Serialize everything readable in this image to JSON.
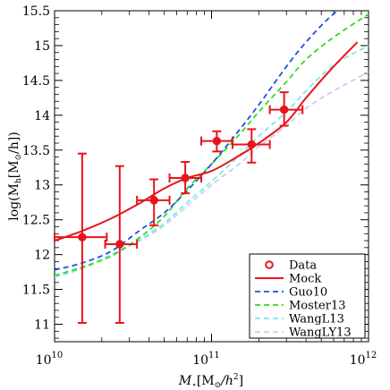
{
  "chart_data": {
    "type": "line",
    "xscale": "log",
    "xlim": [
      10000000000.0,
      1000000000000.0
    ],
    "ylim": [
      10.75,
      15.5
    ],
    "xlabel_main": "M",
    "xlabel_sub": "⋆",
    "xlabel_unit": "[M",
    "xlabel_unit_sub": "⊙",
    "xlabel_unit_tail": "/h",
    "xlabel_unit_sup": "2",
    "xlabel_close": "]",
    "ylabel_pre": "log(M",
    "ylabel_sub": "h",
    "ylabel_unit": "[M",
    "ylabel_unit_sub": "⊙",
    "ylabel_tail": "/h])",
    "x_ticks": [
      {
        "value": 10000000000.0,
        "base": "10",
        "exp": "10"
      },
      {
        "value": 100000000000.0,
        "base": "10",
        "exp": "11"
      },
      {
        "value": 1000000000000.0,
        "base": "10",
        "exp": "12"
      }
    ],
    "y_ticks": [
      {
        "value": 11,
        "label": "11"
      },
      {
        "value": 11.5,
        "label": "11.5"
      },
      {
        "value": 12,
        "label": "12"
      },
      {
        "value": 12.5,
        "label": "12.5"
      },
      {
        "value": 13,
        "label": "13"
      },
      {
        "value": 13.5,
        "label": "13.5"
      },
      {
        "value": 14,
        "label": "14"
      },
      {
        "value": 14.5,
        "label": "14.5"
      },
      {
        "value": 15,
        "label": "15"
      },
      {
        "value": 15.5,
        "label": "15.5"
      }
    ],
    "data_points": {
      "name": "Data",
      "color": "#e8141c",
      "points": [
        {
          "x": 15000000000.0,
          "y": 12.25,
          "xlo": 10000000000.0,
          "xhi": 21500000000.0,
          "ylo": 11.02,
          "yhi": 13.45
        },
        {
          "x": 26000000000.0,
          "y": 12.15,
          "xlo": 21000000000.0,
          "xhi": 33500000000.0,
          "ylo": 11.02,
          "yhi": 13.27
        },
        {
          "x": 43000000000.0,
          "y": 12.78,
          "xlo": 33500000000.0,
          "xhi": 54000000000.0,
          "ylo": 12.42,
          "yhi": 13.08
        },
        {
          "x": 68000000000.0,
          "y": 13.1,
          "xlo": 54000000000.0,
          "xhi": 86000000000.0,
          "ylo": 12.88,
          "yhi": 13.33
        },
        {
          "x": 108000000000.0,
          "y": 13.63,
          "xlo": 86000000000.0,
          "xhi": 136000000000.0,
          "ylo": 13.48,
          "yhi": 13.77
        },
        {
          "x": 180000000000.0,
          "y": 13.58,
          "xlo": 136000000000.0,
          "xhi": 235000000000.0,
          "ylo": 13.32,
          "yhi": 13.8
        },
        {
          "x": 290000000000.0,
          "y": 14.08,
          "xlo": 235000000000.0,
          "xhi": 380000000000.0,
          "ylo": 13.85,
          "yhi": 14.33
        }
      ]
    },
    "series": [
      {
        "name": "Mock",
        "color": "#e8141c",
        "dash": "",
        "width": 2,
        "x": [
          10000000000.0,
          15000000000.0,
          23000000000.0,
          35000000000.0,
          50000000000.0,
          70000000000.0,
          100000000000.0,
          140000000000.0,
          200000000000.0,
          300000000000.0,
          400000000000.0,
          600000000000.0,
          850000000000.0
        ],
        "y": [
          12.2,
          12.34,
          12.52,
          12.74,
          12.95,
          13.1,
          13.2,
          13.38,
          13.6,
          13.9,
          14.25,
          14.7,
          15.05
        ]
      },
      {
        "name": "Guo10",
        "color": "#1f4fe0",
        "dash": "6,4",
        "width": 1.8,
        "x": [
          10000000000.0,
          15000000000.0,
          23000000000.0,
          35000000000.0,
          50000000000.0,
          70000000000.0,
          100000000000.0,
          140000000000.0,
          200000000000.0,
          300000000000.0,
          400000000000.0,
          550000000000.0,
          680000000000.0
        ],
        "y": [
          11.78,
          11.88,
          12.05,
          12.35,
          12.6,
          12.92,
          13.3,
          13.7,
          14.15,
          14.7,
          15.05,
          15.38,
          15.55
        ]
      },
      {
        "name": "Moster13",
        "color": "#2edc22",
        "dash": "6,4",
        "width": 1.8,
        "x": [
          10000000000.0,
          15000000000.0,
          23000000000.0,
          35000000000.0,
          50000000000.0,
          70000000000.0,
          100000000000.0,
          150000000000.0,
          200000000000.0,
          300000000000.0,
          400000000000.0,
          600000000000.0,
          1000000000000.0
        ],
        "y": [
          11.7,
          11.82,
          11.98,
          12.25,
          12.55,
          12.95,
          13.3,
          13.72,
          14.05,
          14.48,
          14.8,
          15.12,
          15.45
        ]
      },
      {
        "name": "WangL13",
        "color": "#7fe8e4",
        "dash": "6,4",
        "width": 1.8,
        "x": [
          10000000000.0,
          15000000000.0,
          23000000000.0,
          35000000000.0,
          50000000000.0,
          70000000000.0,
          100000000000.0,
          150000000000.0,
          200000000000.0,
          300000000000.0,
          400000000000.0,
          600000000000.0,
          1000000000000.0
        ],
        "y": [
          11.68,
          11.8,
          12.0,
          12.22,
          12.45,
          12.75,
          13.05,
          13.42,
          13.7,
          14.05,
          14.35,
          14.72,
          15.0
        ]
      },
      {
        "name": "WangLY13",
        "color": "#c9cdf0",
        "dash": "6,4",
        "width": 1.8,
        "x": [
          10000000000.0,
          15000000000.0,
          23000000000.0,
          35000000000.0,
          50000000000.0,
          70000000000.0,
          100000000000.0,
          150000000000.0,
          200000000000.0,
          300000000000.0,
          400000000000.0,
          600000000000.0,
          1000000000000.0
        ],
        "y": [
          11.68,
          11.8,
          12.0,
          12.2,
          12.42,
          12.7,
          13.0,
          13.3,
          13.55,
          13.85,
          14.1,
          14.35,
          14.62
        ]
      }
    ],
    "legend": {
      "placement": "bottom-right",
      "entries": [
        {
          "label": "Data",
          "kind": "marker",
          "color": "#e8141c"
        },
        {
          "label": "Mock",
          "kind": "solid",
          "color": "#e8141c"
        },
        {
          "label": "Guo10",
          "kind": "dashed",
          "color": "#1f4fe0"
        },
        {
          "label": "Moster13",
          "kind": "dashed",
          "color": "#2edc22"
        },
        {
          "label": "WangL13",
          "kind": "dashed",
          "color": "#7fe8e4"
        },
        {
          "label": "WangLY13",
          "kind": "dashed",
          "color": "#c9cdf0"
        }
      ]
    }
  }
}
